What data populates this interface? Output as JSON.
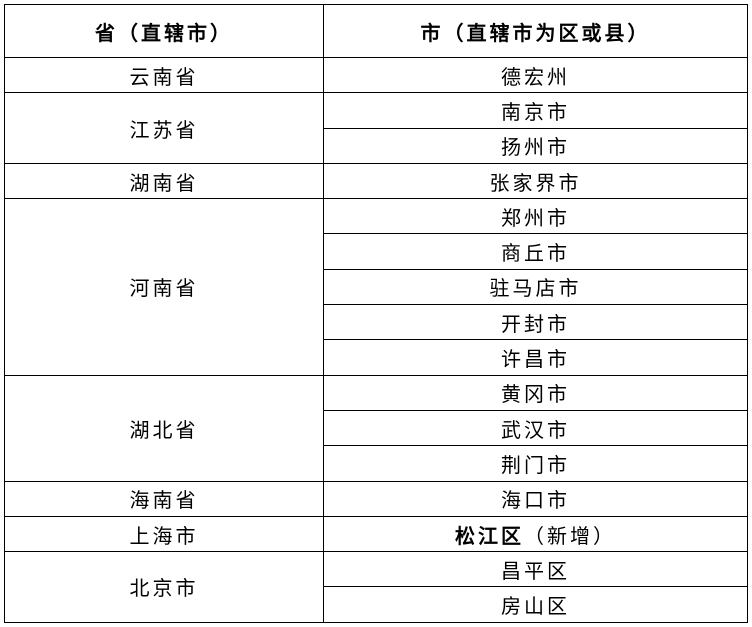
{
  "header": {
    "col1": "省（直辖市）",
    "col2": "市（直辖市为区或县）"
  },
  "provinces": [
    {
      "name": "云南省",
      "cities": [
        {
          "name": "德宏州"
        }
      ]
    },
    {
      "name": "江苏省",
      "cities": [
        {
          "name": "南京市"
        },
        {
          "name": "扬州市"
        }
      ]
    },
    {
      "name": "湖南省",
      "cities": [
        {
          "name": "张家界市"
        }
      ]
    },
    {
      "name": "河南省",
      "cities": [
        {
          "name": "郑州市"
        },
        {
          "name": "商丘市"
        },
        {
          "name": "驻马店市"
        },
        {
          "name": "开封市"
        },
        {
          "name": "许昌市"
        }
      ]
    },
    {
      "name": "湖北省",
      "cities": [
        {
          "name": "黄冈市"
        },
        {
          "name": "武汉市"
        },
        {
          "name": "荆门市"
        }
      ]
    },
    {
      "name": "海南省",
      "cities": [
        {
          "name": "海口市"
        }
      ]
    },
    {
      "name": "上海市",
      "cities": [
        {
          "name": "松江区",
          "bold": true,
          "note": "（新增）"
        }
      ]
    },
    {
      "name": "北京市",
      "cities": [
        {
          "name": "昌平区"
        },
        {
          "name": "房山区"
        }
      ]
    }
  ]
}
